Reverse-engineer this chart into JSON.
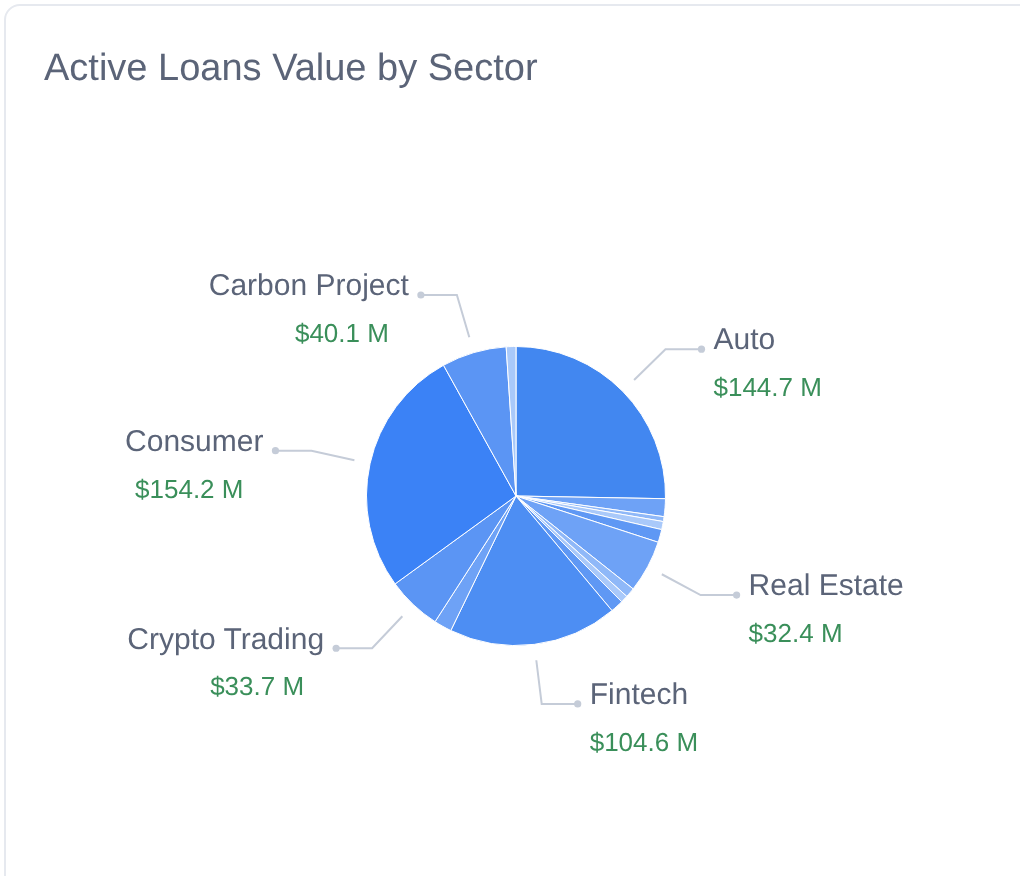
{
  "chart_data": {
    "type": "pie",
    "title": "Active Loans Value by Sector",
    "categories": [
      "Auto",
      null,
      null,
      null,
      null,
      "Real Estate",
      null,
      null,
      null,
      "Fintech",
      null,
      "Crypto Trading",
      "Consumer",
      "Carbon Project",
      null
    ],
    "values": [
      144.7,
      11,
      3,
      5,
      8,
      32.4,
      6,
      4.5,
      8,
      104.6,
      11,
      33.7,
      154.2,
      40.1,
      6
    ],
    "value_labels": [
      "$144.7 M",
      null,
      null,
      null,
      null,
      "$32.4 M",
      null,
      null,
      null,
      "$104.6 M",
      null,
      "$33.7 M",
      "$154.2 M",
      "$40.1 M",
      null
    ],
    "colors": [
      "#4287f0",
      "#6ea2f6",
      "#8fb8f8",
      "#a9c9fa",
      "#5f98f4",
      "#6ea2f6",
      "#8fb8f8",
      "#a9c9fa",
      "#5f98f4",
      "#4d8ef3",
      "#6ea2f6",
      "#5b95f4",
      "#3b82f6",
      "#5b95f4",
      "#a9c9fa"
    ],
    "legend": false
  }
}
